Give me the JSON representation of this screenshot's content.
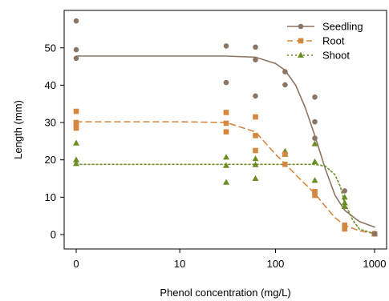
{
  "chart_data": {
    "type": "scatter",
    "title": "",
    "xlabel": "Phenol concentration (mg/L)",
    "ylabel": "Length (mm)",
    "x_scale": "pseudo-log",
    "x_ticks": [
      0,
      10,
      100,
      1000
    ],
    "x_tick_labels": [
      "0",
      "10",
      "100",
      "1000"
    ],
    "y_ticks": [
      0,
      10,
      20,
      30,
      40,
      50
    ],
    "y_tick_labels": [
      "0",
      "10",
      "20",
      "30",
      "40",
      "50"
    ],
    "xlim": [
      0,
      1000
    ],
    "ylim": [
      -1,
      60
    ],
    "grid": false,
    "legend_position": "top-right",
    "series": [
      {
        "name": "Seedling",
        "color": "#8b7565",
        "marker": "circle",
        "line_style": "solid",
        "points": [
          [
            0,
            57.2
          ],
          [
            0,
            49.5
          ],
          [
            0,
            47.2
          ],
          [
            31.25,
            50.5
          ],
          [
            31.25,
            40.7
          ],
          [
            62.5,
            50.2
          ],
          [
            62.5,
            46.8
          ],
          [
            62.5,
            37.1
          ],
          [
            125,
            43.6
          ],
          [
            125,
            40.1
          ],
          [
            250,
            36.8
          ],
          [
            250,
            30.2
          ],
          [
            250,
            25.8
          ],
          [
            500,
            11.7
          ],
          [
            1000,
            0.2
          ],
          [
            1000,
            0.2
          ],
          [
            1000,
            0.2
          ]
        ],
        "fit": [
          [
            0,
            47.8
          ],
          [
            10,
            47.8
          ],
          [
            31.25,
            47.8
          ],
          [
            62.5,
            47.5
          ],
          [
            100,
            45.8
          ],
          [
            125,
            44
          ],
          [
            160,
            40
          ],
          [
            200,
            34
          ],
          [
            250,
            26.5
          ],
          [
            320,
            17.5
          ],
          [
            400,
            10.5
          ],
          [
            500,
            6.5
          ],
          [
            700,
            3.5
          ],
          [
            1000,
            2
          ]
        ]
      },
      {
        "name": "Root",
        "color": "#d4873f",
        "marker": "square",
        "line_style": "dashed",
        "points": [
          [
            0,
            33
          ],
          [
            0,
            30
          ],
          [
            0,
            29.2
          ],
          [
            0,
            28.5
          ],
          [
            31.25,
            32.7
          ],
          [
            31.25,
            29.8
          ],
          [
            31.25,
            27.5
          ],
          [
            62.5,
            31.5
          ],
          [
            62.5,
            26.5
          ],
          [
            62.5,
            22.5
          ],
          [
            125,
            21.5
          ],
          [
            125,
            18.8
          ],
          [
            250,
            11.5
          ],
          [
            250,
            10.5
          ],
          [
            500,
            2.5
          ],
          [
            500,
            1.5
          ],
          [
            1000,
            0.2
          ],
          [
            1000,
            0.2
          ]
        ],
        "fit": [
          [
            0,
            30.2
          ],
          [
            10,
            30.2
          ],
          [
            31.25,
            30
          ],
          [
            62.5,
            27.5
          ],
          [
            100,
            21.5
          ],
          [
            125,
            19
          ],
          [
            160,
            16
          ],
          [
            200,
            13.5
          ],
          [
            250,
            11
          ],
          [
            320,
            7.5
          ],
          [
            400,
            4.5
          ],
          [
            500,
            2.5
          ],
          [
            700,
            1
          ],
          [
            1000,
            0.3
          ]
        ]
      },
      {
        "name": "Shoot",
        "color": "#6b8e23",
        "marker": "triangle",
        "line_style": "dotted",
        "points": [
          [
            0,
            24.5
          ],
          [
            0,
            20
          ],
          [
            0,
            19
          ],
          [
            31.25,
            20.7
          ],
          [
            31.25,
            18.5
          ],
          [
            31.25,
            14
          ],
          [
            62.5,
            20.3
          ],
          [
            62.5,
            18.7
          ],
          [
            62.5,
            15
          ],
          [
            125,
            22.3
          ],
          [
            125,
            21.5
          ],
          [
            250,
            24.3
          ],
          [
            250,
            19.5
          ],
          [
            250,
            14.5
          ],
          [
            500,
            10
          ],
          [
            500,
            8.5
          ],
          [
            500,
            7.5
          ],
          [
            1000,
            0.2
          ],
          [
            1000,
            0.2
          ]
        ],
        "fit": [
          [
            0,
            18.8
          ],
          [
            10,
            18.8
          ],
          [
            31.25,
            18.8
          ],
          [
            62.5,
            18.8
          ],
          [
            125,
            18.8
          ],
          [
            250,
            18.8
          ],
          [
            320,
            18.3
          ],
          [
            400,
            16
          ],
          [
            450,
            13
          ],
          [
            500,
            8.5
          ],
          [
            600,
            4
          ],
          [
            700,
            1.5
          ],
          [
            1000,
            0.2
          ]
        ]
      }
    ]
  }
}
